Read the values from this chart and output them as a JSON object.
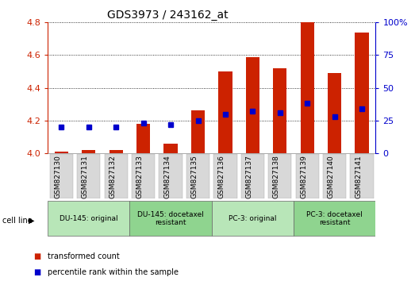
{
  "title": "GDS3973 / 243162_at",
  "samples": [
    "GSM827130",
    "GSM827131",
    "GSM827132",
    "GSM827133",
    "GSM827134",
    "GSM827135",
    "GSM827136",
    "GSM827137",
    "GSM827138",
    "GSM827139",
    "GSM827140",
    "GSM827141"
  ],
  "red_values": [
    4.01,
    4.02,
    4.02,
    4.18,
    4.06,
    4.26,
    4.5,
    4.59,
    4.52,
    4.8,
    4.49,
    4.74
  ],
  "blue_values_pct": [
    20,
    20,
    20,
    23,
    22,
    25,
    30,
    32,
    31,
    38,
    28,
    34
  ],
  "ylim_left": [
    4.0,
    4.8
  ],
  "ylim_right": [
    0,
    100
  ],
  "yticks_left": [
    4.0,
    4.2,
    4.4,
    4.6,
    4.8
  ],
  "yticks_right": [
    0,
    25,
    50,
    75,
    100
  ],
  "ytick_labels_right": [
    "0",
    "25",
    "50",
    "75",
    "100%"
  ],
  "cell_line_groups": [
    {
      "label": "DU-145: original",
      "start": 0,
      "end": 3,
      "color": "#b8e6b8"
    },
    {
      "label": "DU-145: docetaxel\nresistant",
      "start": 3,
      "end": 6,
      "color": "#8fd48f"
    },
    {
      "label": "PC-3: original",
      "start": 6,
      "end": 9,
      "color": "#b8e6b8"
    },
    {
      "label": "PC-3: docetaxel\nresistant",
      "start": 9,
      "end": 12,
      "color": "#8fd48f"
    }
  ],
  "cell_line_label": "cell line",
  "legend_red": "transformed count",
  "legend_blue": "percentile rank within the sample",
  "bar_width": 0.5,
  "bar_color": "#cc2200",
  "dot_color": "#0000cc",
  "axis_color_left": "#cc2200",
  "axis_color_right": "#0000cc",
  "background_color": "#ffffff",
  "plot_bg_color": "#ffffff",
  "grid_color": "#000000",
  "tick_label_color_left": "#cc2200",
  "tick_label_color_right": "#0000cc",
  "xtick_bg_color": "#d8d8d8"
}
